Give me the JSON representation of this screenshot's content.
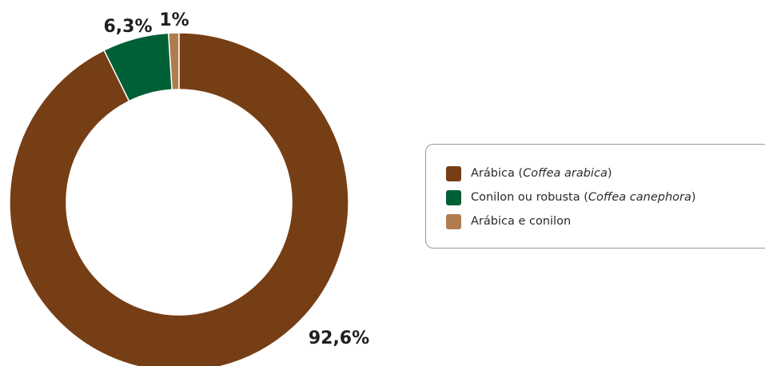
{
  "chart_data": {
    "type": "pie",
    "donut": true,
    "categories": [
      "Arábica e conilon",
      "Conilon ou robusta",
      "Arábica"
    ],
    "values": [
      1.0,
      6.3,
      92.6
    ],
    "value_labels": [
      "1%",
      "6,3%",
      "92,6%"
    ],
    "colors": [
      "#b07c4f",
      "#006035",
      "#763e15"
    ],
    "title": "",
    "legend_placement": "right"
  },
  "legend": {
    "items": [
      {
        "pre": "Arábica (",
        "italic": "Coffea arabica",
        "post": ")",
        "color": "#763e15"
      },
      {
        "pre": "Conilon ou robusta (",
        "italic": "Coffea canephora",
        "post": ")",
        "color": "#006035"
      },
      {
        "pre": "Arábica e conilon",
        "italic": "",
        "post": "",
        "color": "#b07c4f"
      }
    ]
  }
}
